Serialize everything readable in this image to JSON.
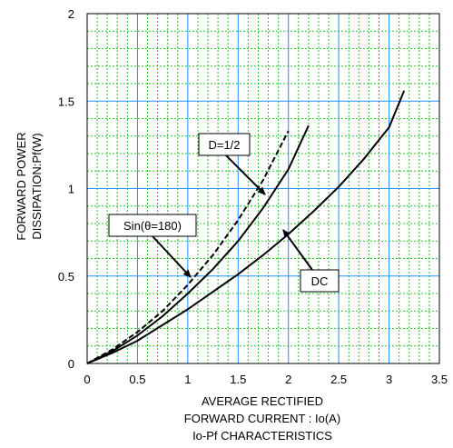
{
  "chart_data": {
    "type": "line",
    "title": "Io-Pf CHARACTERISTICS",
    "xlabel_lines": [
      "AVERAGE RECTIFIED",
      "FORWARD CURRENT : Io(A)"
    ],
    "ylabel_lines": [
      "FORWARD POWER",
      "DISSIPATION:Pf(W)"
    ],
    "xlim": [
      0,
      3.5
    ],
    "ylim": [
      0,
      2
    ],
    "x_ticks": [
      "0",
      "0.5",
      "1",
      "1.5",
      "2",
      "2.5",
      "3",
      "3.5"
    ],
    "y_ticks": [
      "0",
      "0.5",
      "1",
      "1.5",
      "2"
    ],
    "grid": {
      "major": true,
      "minor": true,
      "major_color": "#1e90ff",
      "minor_color": "#2fbf2f"
    },
    "series": [
      {
        "name": "DC",
        "style": "solid",
        "x": [
          0,
          0.25,
          0.5,
          0.75,
          1.0,
          1.25,
          1.5,
          1.75,
          2.0,
          2.25,
          2.5,
          2.75,
          3.0,
          3.15
        ],
        "y": [
          0,
          0.06,
          0.13,
          0.22,
          0.31,
          0.41,
          0.51,
          0.62,
          0.74,
          0.87,
          1.01,
          1.17,
          1.35,
          1.56
        ]
      },
      {
        "name": "D=1/2",
        "style": "solid",
        "x": [
          0,
          0.25,
          0.5,
          0.75,
          1.0,
          1.25,
          1.5,
          1.75,
          2.0,
          2.2
        ],
        "y": [
          0,
          0.07,
          0.16,
          0.27,
          0.4,
          0.54,
          0.7,
          0.89,
          1.11,
          1.36
        ]
      },
      {
        "name": "Sin(θ=180)",
        "style": "dashed",
        "x": [
          0,
          0.25,
          0.5,
          0.75,
          1.0,
          1.25,
          1.5,
          1.75,
          2.0
        ],
        "y": [
          0,
          0.08,
          0.18,
          0.3,
          0.45,
          0.62,
          0.82,
          1.05,
          1.33
        ]
      }
    ],
    "annotations": [
      {
        "label": "D=1/2",
        "target_series": "D=1/2"
      },
      {
        "label": "Sin(θ=180)",
        "target_series": "Sin(θ=180)"
      },
      {
        "label": "DC",
        "target_series": "DC"
      }
    ],
    "colors": {
      "line": "#000000",
      "background": "#ffffff"
    }
  }
}
